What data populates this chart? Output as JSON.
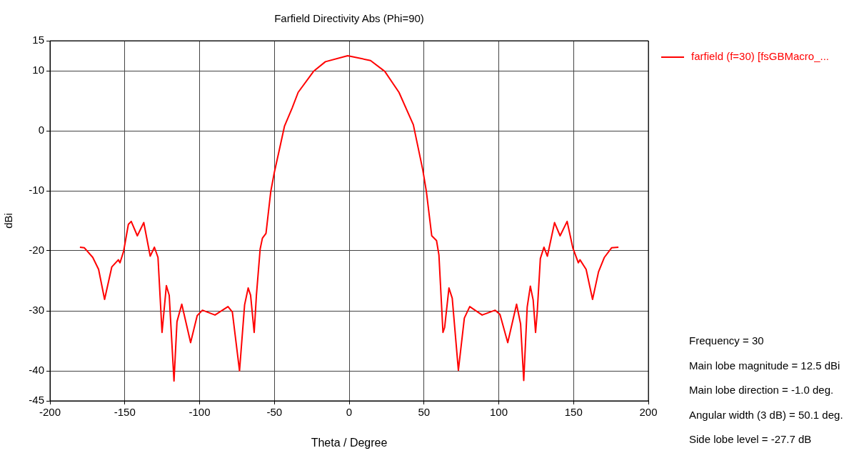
{
  "chart_data": {
    "type": "line",
    "title": "Farfield Directivity Abs (Phi=90)",
    "xlabel": "Theta / Degree",
    "ylabel": "dBi",
    "xlim": [
      -200,
      200
    ],
    "xticks": [
      -200,
      -150,
      -100,
      -50,
      0,
      50,
      100,
      150,
      200
    ],
    "ylim": [
      -45,
      15
    ],
    "yticks": [
      -45,
      -40,
      -30,
      -20,
      -10,
      0,
      10,
      15
    ],
    "grid": true,
    "legend": "top right",
    "marker": "none",
    "line_style": "solid",
    "series": [
      {
        "name": "farfield (f=30) [fsGBMacro_...",
        "color": "#ff0000",
        "x": [
          -180,
          -177,
          -171.4,
          -167.5,
          -163.5,
          -158.7,
          -154.3,
          -153.2,
          -150.8,
          -147.6,
          -145.7,
          -141.6,
          -137.3,
          -133,
          -130.2,
          -127.8,
          -125.1,
          -122.2,
          -120.3,
          -117.1,
          -115.1,
          -111.9,
          -106,
          -101.6,
          -98.1,
          -89.7,
          -81,
          -78.1,
          -73.3,
          -69.9,
          -67.5,
          -65.9,
          -63.5,
          -62,
          -59.5,
          -58,
          -55.6,
          -52.4,
          -50,
          -46.8,
          -43.2,
          -38.1,
          -34.1,
          -23.8,
          -15.9,
          -1,
          14.3,
          23.8,
          33.3,
          42.9,
          49.2,
          51.6,
          55.2,
          58.4,
          60,
          62.7,
          63.8,
          66.7,
          68.9,
          73,
          77,
          80.6,
          88.9,
          97.6,
          100.8,
          106,
          111.9,
          114.6,
          116.7,
          119,
          121.1,
          123,
          124.6,
          125.7,
          127.8,
          130.2,
          132.5,
          137.3,
          141,
          145.7,
          149.5,
          153.2,
          154.3,
          158.4,
          162.7,
          166.7,
          170.6,
          175.4,
          180
        ],
        "values": [
          -19.4,
          -19.5,
          -21.1,
          -23.1,
          -28.1,
          -22.7,
          -21.5,
          -22,
          -20.1,
          -15.6,
          -15.1,
          -17.5,
          -15.3,
          -20.9,
          -19.4,
          -21.1,
          -33.6,
          -25.8,
          -27.4,
          -41.7,
          -31.8,
          -28.9,
          -35.3,
          -30.8,
          -29.9,
          -30.7,
          -29.3,
          -30.2,
          -40,
          -29,
          -26.2,
          -27.4,
          -33.6,
          -27.4,
          -19.7,
          -17.9,
          -17.1,
          -10.1,
          -6.9,
          -3.3,
          0.8,
          3.8,
          6.4,
          9.9,
          11.5,
          12.5,
          11.7,
          9.9,
          6.4,
          1,
          -6.5,
          -10.1,
          -17.5,
          -18.3,
          -20.7,
          -33.6,
          -32.8,
          -26.2,
          -27.9,
          -39.9,
          -31.2,
          -29.3,
          -30.7,
          -29.9,
          -30.6,
          -35.3,
          -28.9,
          -32.2,
          -41.6,
          -29.4,
          -25.9,
          -28.2,
          -33.6,
          -30.3,
          -21.3,
          -19.4,
          -20.9,
          -15.3,
          -17.5,
          -15.1,
          -19.5,
          -22,
          -21.5,
          -23.1,
          -28.1,
          -23.5,
          -21.1,
          -19.5,
          -19.4
        ]
      }
    ],
    "annotations": [
      "Frequency = 30",
      "Main lobe magnitude = 12.5 dBi",
      "Main lobe direction = -1.0 deg.",
      "Angular width (3 dB) = 50.1 deg.",
      "Side lobe level = -27.7 dB"
    ]
  }
}
